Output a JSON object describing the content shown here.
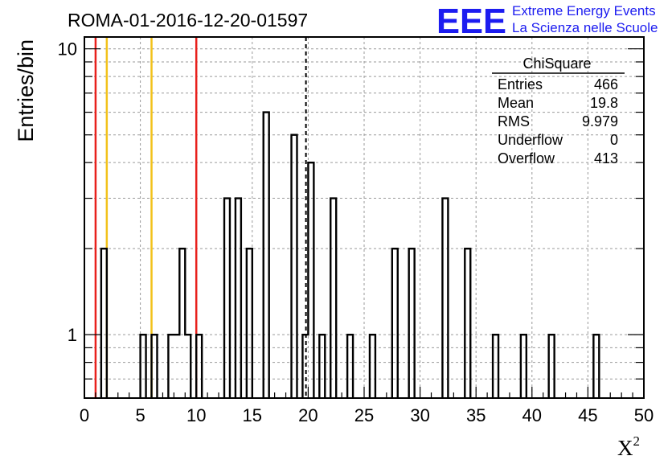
{
  "header": {
    "run_title": "ROMA-01-2016-12-20-01597",
    "logo_mark": "EEE",
    "logo_line1": "Extreme Energy Events",
    "logo_line2": "La Scienza nelle Scuole"
  },
  "chart_data": {
    "type": "bar",
    "histogram": "step",
    "title": "ROMA-01-2016-12-20-01597",
    "xlabel": "X",
    "xlabel_superscript": "2",
    "ylabel": "Entries/bin",
    "xlim": [
      0,
      50
    ],
    "ylim": [
      0.6,
      11
    ],
    "yscale": "log",
    "grid": true,
    "bin_width": 0.5,
    "x_ticks": [
      0,
      5,
      10,
      15,
      20,
      25,
      30,
      35,
      40,
      45,
      50
    ],
    "y_ticks": [
      1,
      10
    ],
    "bins": [
      {
        "x": 1.5,
        "y": 2
      },
      {
        "x": 5.0,
        "y": 1
      },
      {
        "x": 6.0,
        "y": 1
      },
      {
        "x": 7.5,
        "y": 1
      },
      {
        "x": 8.0,
        "y": 1
      },
      {
        "x": 8.5,
        "y": 2
      },
      {
        "x": 9.0,
        "y": 1
      },
      {
        "x": 10.0,
        "y": 1
      },
      {
        "x": 12.5,
        "y": 3
      },
      {
        "x": 13.5,
        "y": 3
      },
      {
        "x": 14.5,
        "y": 2
      },
      {
        "x": 16.0,
        "y": 6
      },
      {
        "x": 18.5,
        "y": 5
      },
      {
        "x": 19.5,
        "y": 1
      },
      {
        "x": 20.0,
        "y": 4
      },
      {
        "x": 21.0,
        "y": 1
      },
      {
        "x": 22.0,
        "y": 3
      },
      {
        "x": 23.5,
        "y": 1
      },
      {
        "x": 25.5,
        "y": 1
      },
      {
        "x": 27.5,
        "y": 2
      },
      {
        "x": 29.0,
        "y": 2
      },
      {
        "x": 32.0,
        "y": 3
      },
      {
        "x": 34.0,
        "y": 2
      },
      {
        "x": 36.5,
        "y": 1
      },
      {
        "x": 39.0,
        "y": 1
      },
      {
        "x": 41.5,
        "y": 1
      },
      {
        "x": 45.5,
        "y": 1
      }
    ],
    "reference_lines": [
      {
        "x": 1,
        "color": "#e8201c",
        "style": "solid"
      },
      {
        "x": 2,
        "color": "#f2c21a",
        "style": "solid"
      },
      {
        "x": 6,
        "color": "#f2c21a",
        "style": "solid"
      },
      {
        "x": 10,
        "color": "#e8201c",
        "style": "solid"
      },
      {
        "x": 19.8,
        "color": "#000000",
        "style": "dashed"
      }
    ],
    "stats_box": {
      "title": "ChiSquare",
      "rows": [
        {
          "label": "Entries",
          "value": "466"
        },
        {
          "label": "Mean",
          "value": "19.8"
        },
        {
          "label": "RMS",
          "value": "9.979"
        },
        {
          "label": "Underflow",
          "value": "0"
        },
        {
          "label": "Overflow",
          "value": "413"
        }
      ]
    },
    "colors": {
      "histogram": "#000000",
      "grid": "#9a9a9a",
      "logo": "#1c1cf0"
    }
  }
}
